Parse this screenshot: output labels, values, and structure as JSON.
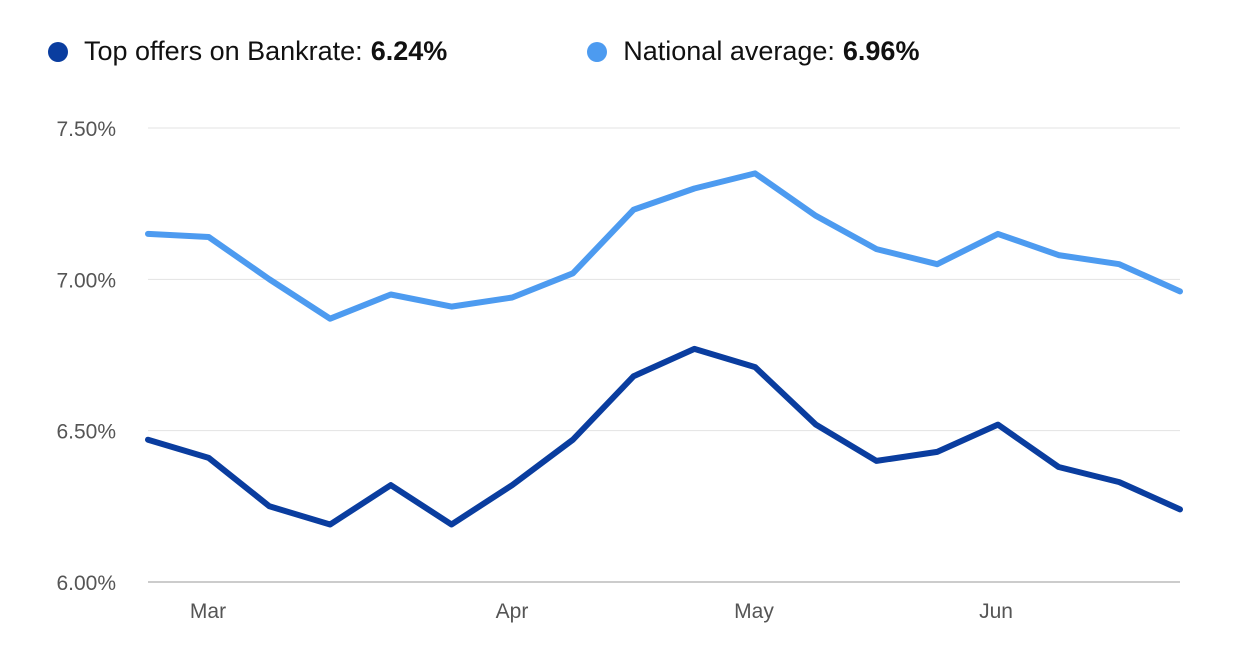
{
  "legend": {
    "items": [
      {
        "label": "Top offers on Bankrate:",
        "value": "6.24%",
        "color": "#0a3d9f"
      },
      {
        "label": "National average:",
        "value": "6.96%",
        "color": "#4d9bf0"
      }
    ]
  },
  "chart_data": {
    "type": "line",
    "y_ticks": [
      "7.50%",
      "7.00%",
      "6.50%",
      "6.00%"
    ],
    "ylim": [
      6.0,
      7.5
    ],
    "x_ticks": [
      {
        "label": "Mar",
        "index": 0.5
      },
      {
        "label": "Apr",
        "index": 3
      },
      {
        "label": "May",
        "index": 5
      },
      {
        "label": "Jun",
        "index": 7
      }
    ],
    "x_count": 9,
    "grid": true,
    "legend_position": "top",
    "series": [
      {
        "name": "National average",
        "color": "#4d9bf0",
        "values": [
          7.15,
          7.14,
          7.0,
          6.87,
          6.95,
          6.91,
          6.94,
          7.02,
          7.23,
          7.3,
          7.35,
          7.21,
          7.1,
          7.05,
          7.15,
          7.08,
          7.05,
          6.96
        ]
      },
      {
        "name": "Top offers on Bankrate",
        "color": "#0a3d9f",
        "values": [
          6.47,
          6.41,
          6.25,
          6.19,
          6.32,
          6.19,
          6.32,
          6.47,
          6.68,
          6.77,
          6.71,
          6.52,
          6.4,
          6.43,
          6.52,
          6.38,
          6.33,
          6.24
        ]
      }
    ]
  }
}
